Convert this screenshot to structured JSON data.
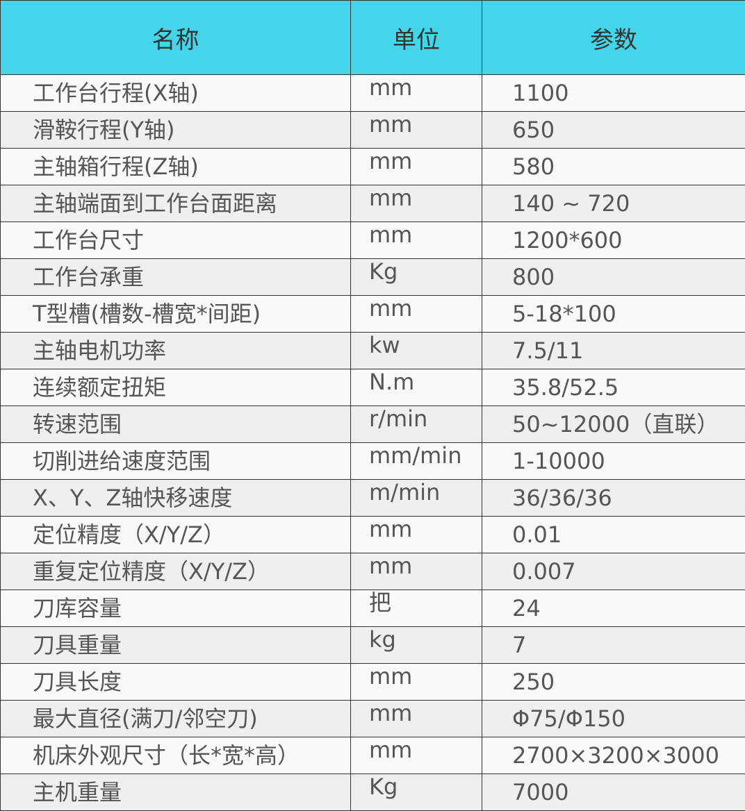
{
  "colors": {
    "header_bg": "#44D5EA",
    "row_odd": "#f9f9f9",
    "row_even": "#efefef",
    "border": "#333333",
    "text": "#555555"
  },
  "headers": [
    "名称",
    "单位",
    "参数"
  ],
  "rows": [
    [
      "工作台行程(X轴)",
      "mm",
      "1100"
    ],
    [
      "滑鞍行程(Y轴)",
      "mm",
      "650"
    ],
    [
      "主轴箱行程(Z轴)",
      "mm",
      "580"
    ],
    [
      "主轴端面到工作台面距离",
      "mm",
      "140 ~ 720"
    ],
    [
      "工作台尺寸",
      "mm",
      "1200*600"
    ],
    [
      "工作台承重",
      "Kg",
      "800"
    ],
    [
      "T型槽(槽数-槽宽*间距)",
      "mm",
      "5-18*100"
    ],
    [
      "主轴电机功率",
      "kw",
      "7.5/11"
    ],
    [
      "连续额定扭矩",
      "N.m",
      "35.8/52.5"
    ],
    [
      "转速范围",
      "r/min",
      "50~12000（直联）"
    ],
    [
      "切削进给速度范围",
      "mm/min",
      "1-10000"
    ],
    [
      "X、Y、Z轴快移速度",
      "m/min",
      "36/36/36"
    ],
    [
      "定位精度（X/Y/Z）",
      "mm",
      "0.01"
    ],
    [
      "重复定位精度（X/Y/Z）",
      "mm",
      "0.007"
    ],
    [
      "刀库容量",
      "把",
      "24"
    ],
    [
      "刀具重量",
      "kg",
      "7"
    ],
    [
      "刀具长度",
      "mm",
      "250"
    ],
    [
      "最大直径(满刀/邻空刀)",
      "mm",
      "Φ75/Φ150"
    ],
    [
      "机床外观尺寸（长*宽*高）",
      "mm",
      "2700×3200×3000"
    ],
    [
      "主机重量",
      "Kg",
      "7000"
    ]
  ]
}
